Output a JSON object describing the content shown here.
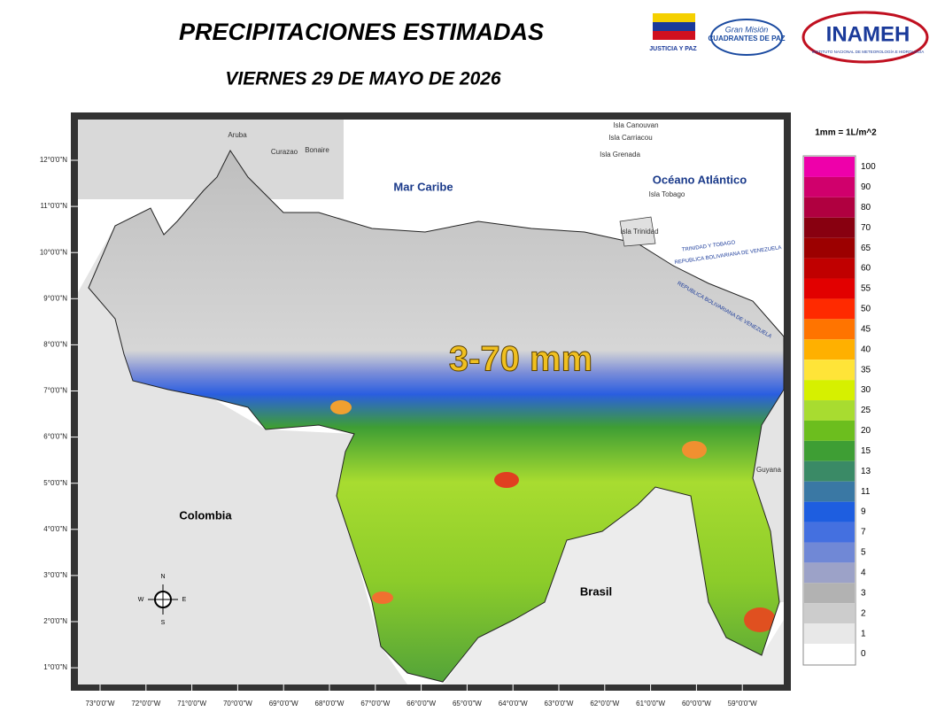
{
  "header": {
    "title": "PRECIPITACIONES ESTIMADAS",
    "subtitle": "VIERNES 29 DE MAYO DE 2026"
  },
  "logos": {
    "justicia": "JUSTICIA Y PAZ",
    "gran_mision": "Gran Misión",
    "cuadrantes": "CUADRANTES DE PAZ",
    "inameh": "INAMEH",
    "inameh_full": "INSTITUTO NACIONAL DE METEOROLOGÍA E HIDROLOGÍA"
  },
  "map": {
    "range_label": "3-70 mm",
    "latitudes": [
      "12°0'0\"N",
      "11°0'0\"N",
      "10°0'0\"N",
      "9°0'0\"N",
      "8°0'0\"N",
      "7°0'0\"N",
      "6°0'0\"N",
      "5°0'0\"N",
      "4°0'0\"N",
      "3°0'0\"N",
      "2°0'0\"N",
      "1°0'0\"N"
    ],
    "longitudes": [
      "73°0'0\"W",
      "72°0'0\"W",
      "71°0'0\"W",
      "70°0'0\"W",
      "69°0'0\"W",
      "68°0'0\"W",
      "67°0'0\"W",
      "66°0'0\"W",
      "65°0'0\"W",
      "64°0'0\"W",
      "63°0'0\"W",
      "62°0'0\"W",
      "61°0'0\"W",
      "60°0'0\"W",
      "59°0'0\"W"
    ],
    "places": {
      "sea": "Mar Caribe",
      "ocean": "Océano Atlántico",
      "colombia": "Colombia",
      "brasil": "Brasil",
      "guyana": "Guyana",
      "aruba": "Aruba",
      "curazao": "Curazao",
      "bonaire": "Bonaire",
      "canouvan": "Isla Canouvan",
      "carriacou": "Isla Carriacou",
      "grenada": "Isla Grenada",
      "tobago": "Isla Tobago",
      "trinidad": "Isla Trinidad",
      "tt": "TRINIDAD Y TOBAGO",
      "rbv": "REPUBLICA BOLIVARIANA DE VENEZUELA"
    },
    "compass": {
      "n": "N",
      "s": "S",
      "e": "E",
      "w": "W"
    }
  },
  "legend": {
    "unit": "1mm = 1L/m^2",
    "classes": [
      {
        "value": 100,
        "color": "#ee00aa"
      },
      {
        "value": 90,
        "color": "#d0006c"
      },
      {
        "value": 80,
        "color": "#b00040"
      },
      {
        "value": 70,
        "color": "#880010"
      },
      {
        "value": 65,
        "color": "#9c0000"
      },
      {
        "value": 60,
        "color": "#c00000"
      },
      {
        "value": 55,
        "color": "#e20000"
      },
      {
        "value": 50,
        "color": "#ff2a00"
      },
      {
        "value": 45,
        "color": "#ff7400"
      },
      {
        "value": 40,
        "color": "#ffb000"
      },
      {
        "value": 35,
        "color": "#ffe438"
      },
      {
        "value": 30,
        "color": "#d6f000"
      },
      {
        "value": 25,
        "color": "#a8dc30"
      },
      {
        "value": 20,
        "color": "#6cbe1e"
      },
      {
        "value": 15,
        "color": "#3e9e34"
      },
      {
        "value": 13,
        "color": "#3a8a66"
      },
      {
        "value": 11,
        "color": "#3a78a4"
      },
      {
        "value": 9,
        "color": "#1e5ee0"
      },
      {
        "value": 7,
        "color": "#4470e0"
      },
      {
        "value": 5,
        "color": "#7088d6"
      },
      {
        "value": 4,
        "color": "#9ca2c8"
      },
      {
        "value": 3,
        "color": "#b2b2b2"
      },
      {
        "value": 2,
        "color": "#cccccc"
      },
      {
        "value": 1,
        "color": "#e8e8e8"
      },
      {
        "value": 0,
        "color": "#ffffff"
      }
    ]
  }
}
